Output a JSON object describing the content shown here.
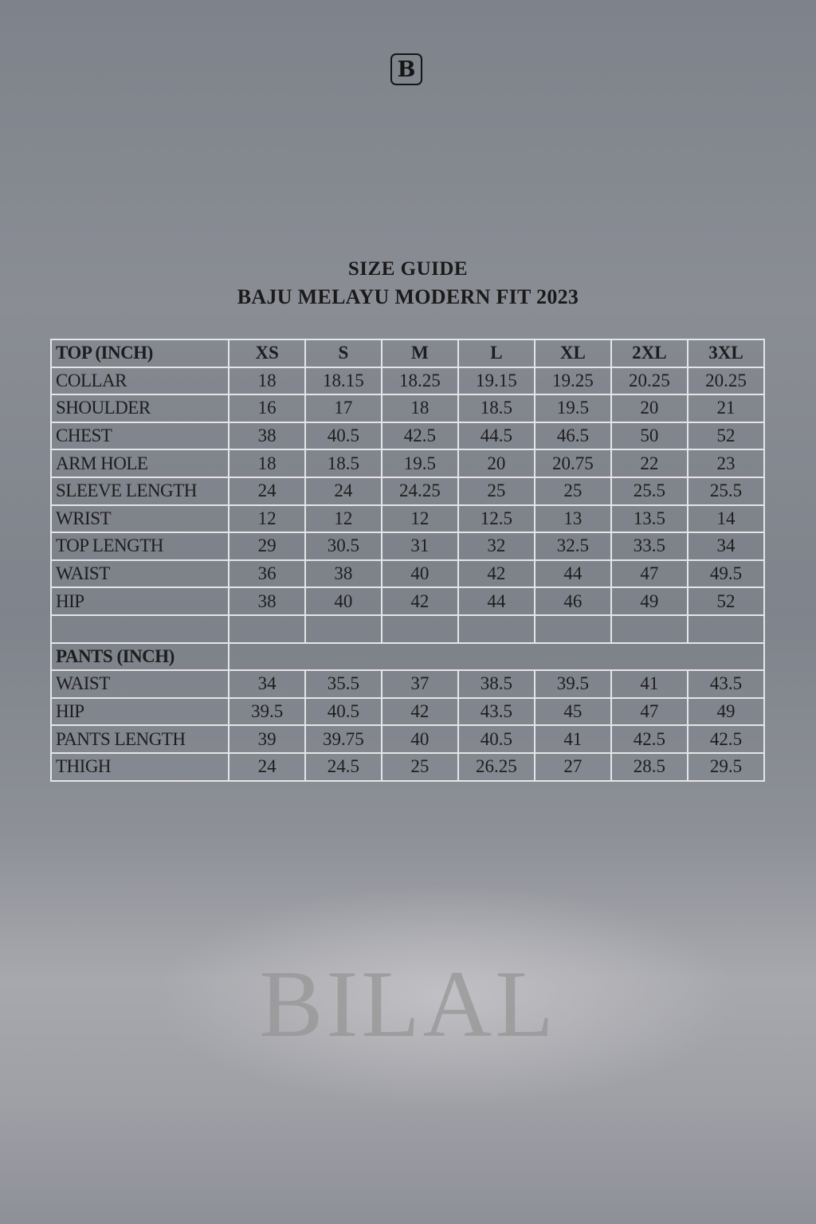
{
  "logo": {
    "letter": "B"
  },
  "title": {
    "line1": "SIZE GUIDE",
    "line2": "BAJU MELAYU MODERN FIT 2023"
  },
  "sizes": [
    "XS",
    "S",
    "M",
    "L",
    "XL",
    "2XL",
    "3XL"
  ],
  "top": {
    "header": "TOP (INCH)",
    "rows": [
      {
        "label": "COLLAR",
        "values": [
          "18",
          "18.15",
          "18.25",
          "19.15",
          "19.25",
          "20.25",
          "20.25"
        ]
      },
      {
        "label": "SHOULDER",
        "values": [
          "16",
          "17",
          "18",
          "18.5",
          "19.5",
          "20",
          "21"
        ]
      },
      {
        "label": "CHEST",
        "values": [
          "38",
          "40.5",
          "42.5",
          "44.5",
          "46.5",
          "50",
          "52"
        ]
      },
      {
        "label": "ARM HOLE",
        "values": [
          "18",
          "18.5",
          "19.5",
          "20",
          "20.75",
          "22",
          "23"
        ]
      },
      {
        "label": "SLEEVE LENGTH",
        "values": [
          "24",
          "24",
          "24.25",
          "25",
          "25",
          "25.5",
          "25.5"
        ]
      },
      {
        "label": "WRIST",
        "values": [
          "12",
          "12",
          "12",
          "12.5",
          "13",
          "13.5",
          "14"
        ]
      },
      {
        "label": "TOP LENGTH",
        "values": [
          "29",
          "30.5",
          "31",
          "32",
          "32.5",
          "33.5",
          "34"
        ]
      },
      {
        "label": "WAIST",
        "values": [
          "36",
          "38",
          "40",
          "42",
          "44",
          "47",
          "49.5"
        ]
      },
      {
        "label": "HIP",
        "values": [
          "38",
          "40",
          "42",
          "44",
          "46",
          "49",
          "52"
        ]
      }
    ]
  },
  "pants": {
    "header": "PANTS (INCH)",
    "rows": [
      {
        "label": "WAIST",
        "values": [
          "34",
          "35.5",
          "37",
          "38.5",
          "39.5",
          "41",
          "43.5"
        ]
      },
      {
        "label": "HIP",
        "values": [
          "39.5",
          "40.5",
          "42",
          "43.5",
          "45",
          "47",
          "49"
        ]
      },
      {
        "label": "PANTS LENGTH",
        "values": [
          "39",
          "39.75",
          "40",
          "40.5",
          "41",
          "42.5",
          "42.5"
        ]
      },
      {
        "label": "THIGH",
        "values": [
          "24",
          "24.5",
          "25",
          "26.25",
          "27",
          "28.5",
          "29.5"
        ]
      }
    ]
  },
  "watermark": "BILAL"
}
